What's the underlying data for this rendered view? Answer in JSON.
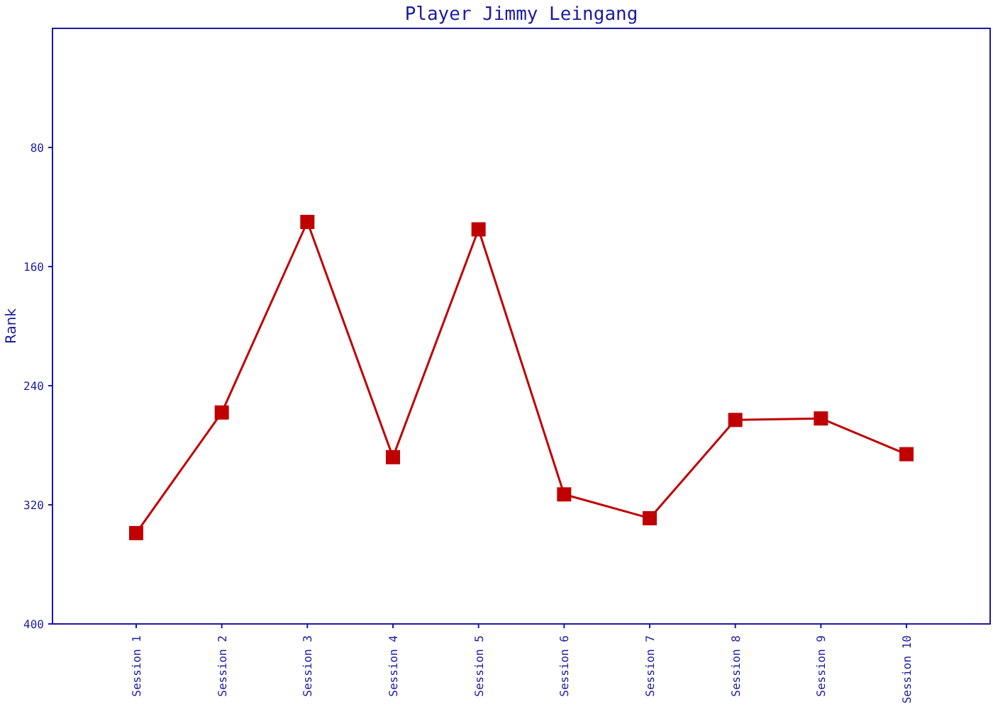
{
  "chart_data": {
    "type": "line",
    "title": "Player Jimmy Leingang",
    "ylabel": "Rank",
    "categories": [
      "Session 1",
      "Session 2",
      "Session 3",
      "Session 4",
      "Session 5",
      "Session 6",
      "Session 7",
      "Session 8",
      "Session 9",
      "Session 10"
    ],
    "series": [
      {
        "color": "#c00000",
        "values": [
          339,
          258,
          130,
          288,
          135,
          313,
          329,
          263,
          262,
          286
        ]
      }
    ],
    "ylim": [
      400,
      0
    ],
    "yticks": [
      80,
      160,
      240,
      320,
      400
    ],
    "marker": "square",
    "line_style": "solid",
    "grid": false
  }
}
